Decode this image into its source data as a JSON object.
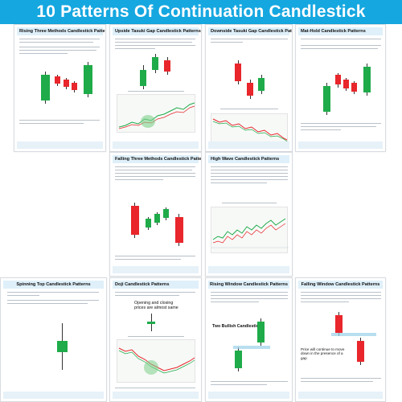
{
  "title": "10 Patterns Of Continuation Candlestick",
  "cards": [
    {
      "title": "Rising Three Methods Candlestick Patterns"
    },
    {
      "title": "Upside Tasuki Gap Candlestick Patterns"
    },
    {
      "title": "Downside Tasuki Gap Candlestick Patterns"
    },
    {
      "title": "Mat-Hold Candlestick Patterns"
    },
    {
      "title": "Falling Three Methods Candlestick Patterns"
    },
    {
      "title": "High Wave Candlestick Patterns"
    },
    {
      "title": "Spinning Top Candlestick Patterns"
    },
    {
      "title": "Doji Candlestick Patterns"
    },
    {
      "title": "Rising Window Candlestick Patterns"
    },
    {
      "title": "Falling Window Candlestick Patterns"
    }
  ],
  "doji_callout": "Opening and closing prices are almost same",
  "rising_window_callout": "Two Bullish Candlesticks",
  "falling_window_callout": "Price will continue to move down in the presence of a gap",
  "colors": {
    "accent": "#15a7e0",
    "bull": "#1fab4a",
    "bear": "#e8262b",
    "header_bg": "#dff0fa"
  }
}
